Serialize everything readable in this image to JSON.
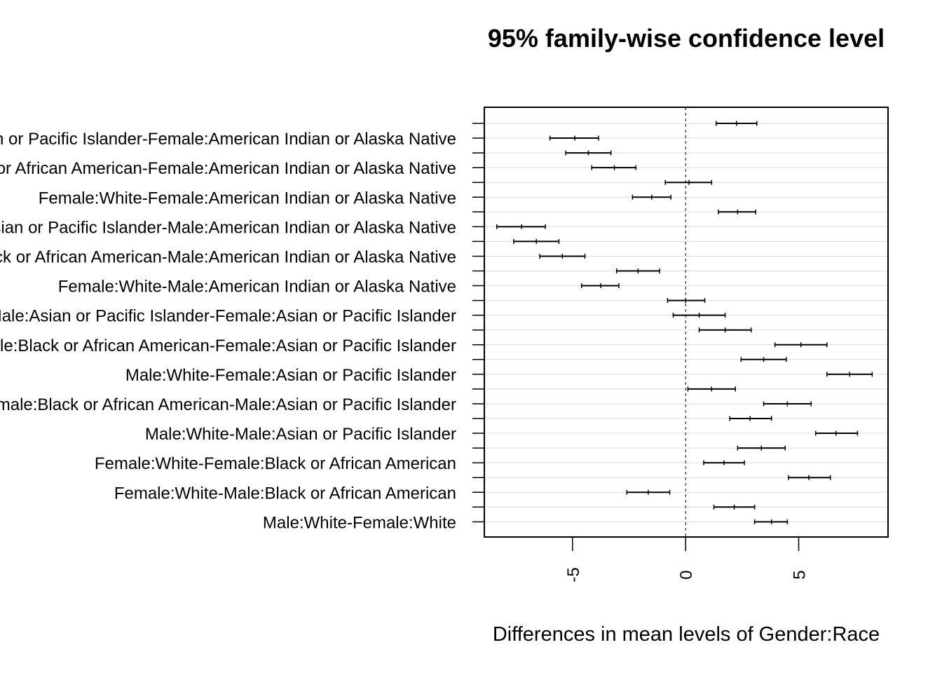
{
  "chart_data": {
    "type": "scatter",
    "title": "95% family-wise confidence level",
    "xlabel": "Differences in mean levels of Gender:Race",
    "ylabel": "",
    "xlim": [
      -8.9,
      8.95
    ],
    "xticks": [
      -5,
      0,
      5
    ],
    "xtick_labels": [
      "-5",
      "0",
      "5"
    ],
    "reference_line": 0,
    "grid": true,
    "rows": [
      {
        "label": "",
        "lwr": 1.35,
        "diff": 2.25,
        "upr": 3.15
      },
      {
        "label": "Female:Asian or Pacific Islander-Female:American Indian or Alaska Native",
        "lwr": -6.0,
        "diff": -4.9,
        "upr": -3.85
      },
      {
        "label": "",
        "lwr": -5.3,
        "diff": -4.3,
        "upr": -3.3
      },
      {
        "label": "Female:Black or African American-Female:American Indian or Alaska Native",
        "lwr": -4.15,
        "diff": -3.15,
        "upr": -2.2
      },
      {
        "label": "",
        "lwr": -0.9,
        "diff": 0.15,
        "upr": 1.15
      },
      {
        "label": "Female:White-Female:American Indian or Alaska Native",
        "lwr": -2.35,
        "diff": -1.5,
        "upr": -0.65
      },
      {
        "label": "",
        "lwr": 1.45,
        "diff": 2.3,
        "upr": 3.1
      },
      {
        "label": "Male:Asian or Pacific Islander-Male:American Indian or Alaska Native",
        "lwr": -8.35,
        "diff": -7.25,
        "upr": -6.2
      },
      {
        "label": "",
        "lwr": -7.6,
        "diff": -6.6,
        "upr": -5.6
      },
      {
        "label": "Male:Black or African American-Male:American Indian or Alaska Native",
        "lwr": -6.45,
        "diff": -5.45,
        "upr": -4.45
      },
      {
        "label": "",
        "lwr": -3.05,
        "diff": -2.1,
        "upr": -1.15
      },
      {
        "label": "Female:White-Male:American Indian or Alaska Native",
        "lwr": -4.6,
        "diff": -3.75,
        "upr": -2.95
      },
      {
        "label": "",
        "lwr": -0.8,
        "diff": 0.0,
        "upr": 0.85
      },
      {
        "label": "Male:Asian or Pacific Islander-Female:Asian or Pacific Islander",
        "lwr": -0.55,
        "diff": 0.6,
        "upr": 1.75
      },
      {
        "label": "",
        "lwr": 0.6,
        "diff": 1.75,
        "upr": 2.9
      },
      {
        "label": "Male:Black or African American-Female:Asian or Pacific Islander",
        "lwr": 3.95,
        "diff": 5.1,
        "upr": 6.25
      },
      {
        "label": "",
        "lwr": 2.45,
        "diff": 3.45,
        "upr": 4.45
      },
      {
        "label": "Male:White-Female:Asian or Pacific Islander",
        "lwr": 6.25,
        "diff": 7.25,
        "upr": 8.25
      },
      {
        "label": "",
        "lwr": 0.1,
        "diff": 1.15,
        "upr": 2.2
      },
      {
        "label": "Female:Black or African American-Male:Asian or Pacific Islander",
        "lwr": 3.45,
        "diff": 4.5,
        "upr": 5.55
      },
      {
        "label": "",
        "lwr": 1.95,
        "diff": 2.85,
        "upr": 3.8
      },
      {
        "label": "Male:White-Male:Asian or Pacific Islander",
        "lwr": 5.75,
        "diff": 6.65,
        "upr": 7.6
      },
      {
        "label": "",
        "lwr": 2.3,
        "diff": 3.35,
        "upr": 4.4
      },
      {
        "label": "Female:White-Female:Black or African American",
        "lwr": 0.8,
        "diff": 1.7,
        "upr": 2.6
      },
      {
        "label": "",
        "lwr": 4.55,
        "diff": 5.45,
        "upr": 6.4
      },
      {
        "label": "Female:White-Male:Black or African American",
        "lwr": -2.6,
        "diff": -1.65,
        "upr": -0.7
      },
      {
        "label": "",
        "lwr": 1.25,
        "diff": 2.15,
        "upr": 3.05
      },
      {
        "label": "Male:White-Female:White",
        "lwr": 3.05,
        "diff": 3.8,
        "upr": 4.5
      }
    ]
  }
}
